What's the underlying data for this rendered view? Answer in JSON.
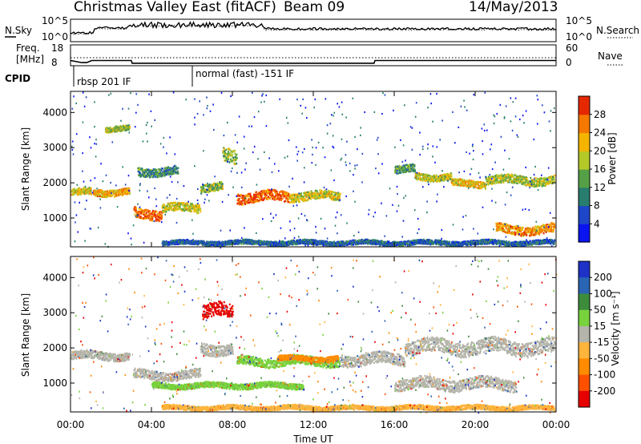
{
  "header": {
    "title": "Christmas Valley East (fitACF)",
    "beam": "Beam 09",
    "date": "14/May/2013"
  },
  "top_panels": {
    "nsky_label": "N.Sky",
    "nsearch_label": "N.Search",
    "nsky_ticks": [
      "10^5",
      "10^0"
    ],
    "freq_label_1": "Freq.",
    "freq_label_2": "[MHz]",
    "freq_ticks": [
      "18",
      "8"
    ],
    "nave_label": "Nave",
    "nave_ticks": [
      "60",
      "0"
    ],
    "cpid_label": "CPID",
    "cpid_1": "rbsp 201 IF",
    "cpid_2": "normal (fast) -151 IF",
    "freq_steps": [
      {
        "t": 0.0,
        "mhz": 10.5
      },
      {
        "t": 0.55,
        "mhz": 9.5
      },
      {
        "t": 0.8,
        "mhz": 9.5
      },
      {
        "t": 1.05,
        "mhz": 10.5
      },
      {
        "t": 3.0,
        "mhz": 10.5
      },
      {
        "t": 3.05,
        "mhz": 9.2
      },
      {
        "t": 15.0,
        "mhz": 9.2
      },
      {
        "t": 15.05,
        "mhz": 10.5
      },
      {
        "t": 24.0,
        "mhz": 10.5
      }
    ]
  },
  "chart_data": [
    {
      "type": "heatmap",
      "xlabel": "Time UT",
      "ylabel": "Slant Range [km]",
      "xlim": [
        0,
        24
      ],
      "ylim": [
        180,
        4600
      ],
      "x_ticks": [
        "00:00",
        "04:00",
        "08:00",
        "12:00",
        "16:00",
        "20:00",
        "00:00"
      ],
      "y_ticks": [
        1000,
        2000,
        3000,
        4000
      ],
      "colorbar_label": "Power [dB]",
      "colorbar_ticks": [
        4,
        8,
        12,
        16,
        20,
        24,
        28
      ],
      "colorbar_colors": [
        "#0a14f0",
        "#1e46c8",
        "#287d6e",
        "#55a046",
        "#b4c828",
        "#f5b400",
        "#f57800",
        "#e62800"
      ],
      "features": [
        {
          "t0": 0.0,
          "t1": 1.0,
          "r": 1750,
          "w": 120,
          "v": 0.62
        },
        {
          "t0": 1.1,
          "t1": 2.9,
          "r": 1760,
          "w": 120,
          "v": 0.72
        },
        {
          "t0": 3.1,
          "t1": 4.5,
          "r": 1150,
          "w": 180,
          "v": 0.85
        },
        {
          "t0": 4.5,
          "t1": 6.4,
          "r": 1300,
          "w": 150,
          "v": 0.6
        },
        {
          "t0": 6.4,
          "t1": 7.5,
          "r": 1900,
          "w": 150,
          "v": 0.5
        },
        {
          "t0": 7.5,
          "t1": 8.2,
          "r": 2750,
          "w": 250,
          "v": 0.5
        },
        {
          "t0": 8.2,
          "t1": 10.8,
          "r": 1620,
          "w": 180,
          "v": 0.85
        },
        {
          "t0": 10.8,
          "t1": 13.3,
          "r": 1640,
          "w": 150,
          "v": 0.6
        },
        {
          "t0": 1.7,
          "t1": 2.9,
          "r": 3550,
          "w": 100,
          "v": 0.5
        },
        {
          "t0": 3.3,
          "t1": 5.3,
          "r": 2350,
          "w": 150,
          "v": 0.35
        },
        {
          "t0": 16.0,
          "t1": 17.0,
          "r": 2400,
          "w": 130,
          "v": 0.4
        },
        {
          "t0": 17.0,
          "t1": 18.8,
          "r": 2200,
          "w": 120,
          "v": 0.6
        },
        {
          "t0": 18.8,
          "t1": 20.5,
          "r": 2000,
          "w": 120,
          "v": 0.65
        },
        {
          "t0": 20.5,
          "t1": 23.9,
          "r": 2100,
          "w": 150,
          "v": 0.55
        },
        {
          "t0": 21.0,
          "t1": 23.9,
          "r": 700,
          "w": 160,
          "v": 0.75
        },
        {
          "t0": 4.5,
          "t1": 23.9,
          "r": 320,
          "w": 80,
          "v": 0.25
        }
      ]
    },
    {
      "type": "heatmap",
      "xlabel": "Time UT",
      "ylabel": "Slant Range [km]",
      "xlim": [
        0,
        24
      ],
      "ylim": [
        180,
        4600
      ],
      "x_ticks": [
        "00:00",
        "04:00",
        "08:00",
        "12:00",
        "16:00",
        "20:00",
        "00:00"
      ],
      "y_ticks": [
        1000,
        2000,
        3000,
        4000
      ],
      "colorbar_label": "Velocity [m s⁻¹]",
      "colorbar_ticks": [
        200,
        100,
        50,
        15,
        -15,
        -50,
        -100,
        -200
      ],
      "colorbar_colors": [
        "#1e32c8",
        "#2a64b4",
        "#3c8c3c",
        "#78d23c",
        "#b4b4aa",
        "#ffb43c",
        "#ff8c00",
        "#ff5000",
        "#e60000"
      ],
      "features": [
        {
          "t0": 0.0,
          "t1": 2.9,
          "r": 1800,
          "w": 140,
          "c": "#b4b4aa"
        },
        {
          "t0": 3.1,
          "t1": 6.4,
          "r": 1250,
          "w": 160,
          "c": "#b4b4aa"
        },
        {
          "t0": 6.4,
          "t1": 8.0,
          "r": 2000,
          "w": 200,
          "c": "#b4b4aa"
        },
        {
          "t0": 8.2,
          "t1": 13.3,
          "r": 1640,
          "w": 160,
          "c": "#78d23c"
        },
        {
          "t0": 10.2,
          "t1": 13.2,
          "r": 1720,
          "w": 90,
          "c": "#ff8c00"
        },
        {
          "t0": 6.5,
          "t1": 8.0,
          "r": 3050,
          "w": 250,
          "c": "#e60000"
        },
        {
          "t0": 4.0,
          "t1": 11.5,
          "r": 950,
          "w": 100,
          "c": "#78d23c"
        },
        {
          "t0": 13.3,
          "t1": 16.5,
          "r": 1700,
          "w": 200,
          "c": "#b4b4aa"
        },
        {
          "t0": 16.5,
          "t1": 23.9,
          "r": 2050,
          "w": 250,
          "c": "#b4b4aa"
        },
        {
          "t0": 16.0,
          "t1": 22.0,
          "r": 1000,
          "w": 200,
          "c": "#b4b4aa"
        },
        {
          "t0": 4.5,
          "t1": 23.9,
          "r": 320,
          "w": 80,
          "c": "#ffb43c"
        }
      ]
    }
  ]
}
